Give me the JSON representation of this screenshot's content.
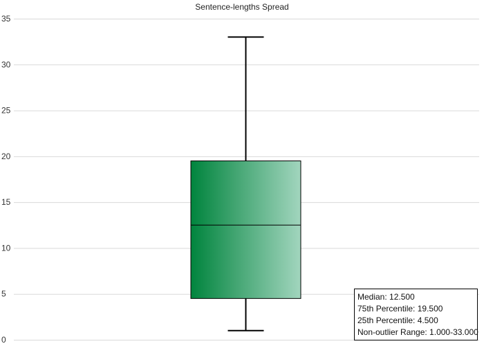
{
  "chart_data": {
    "type": "boxplot",
    "title": "Sentence-lengths Spread",
    "xlabel": "",
    "ylabel": "",
    "ylim": [
      0,
      35
    ],
    "yticks": [
      0,
      5,
      10,
      15,
      20,
      25,
      30,
      35
    ],
    "grid": true,
    "box": {
      "whisker_low": 1,
      "q1": 4.5,
      "median": 12.5,
      "q3": 19.5,
      "whisker_high": 33
    },
    "box_gradient": [
      "#00843d",
      "#a2d5be"
    ]
  },
  "stats": {
    "median": "Median: 12.500",
    "p75": "75th Percentile: 19.500",
    "p25": "25th Percentile: 4.500",
    "range": "Non-outlier Range: 1.000-33.000"
  }
}
